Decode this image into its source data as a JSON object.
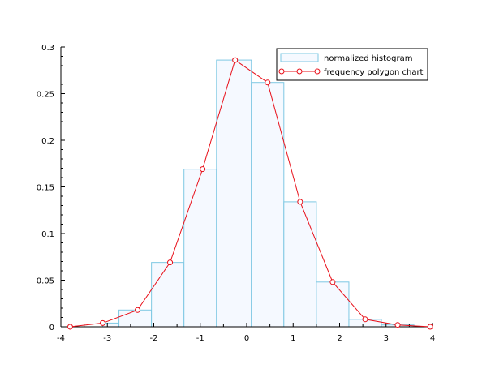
{
  "chart_data": {
    "type": "bar",
    "title": "",
    "xlabel": "",
    "ylabel": "",
    "xlim": [
      -4,
      4
    ],
    "ylim": [
      0,
      0.3
    ],
    "x_ticks": [
      "-4",
      "-3",
      "-2",
      "-1",
      "0",
      "1",
      "2",
      "3",
      "4"
    ],
    "y_ticks": [
      "0",
      "0.05",
      "0.1",
      "0.15",
      "0.2",
      "0.25",
      "0.3"
    ],
    "grid": false,
    "legend_position": "top-right",
    "series": [
      {
        "name": "normalized histogram",
        "type": "bar",
        "color": "#7ec8e3",
        "fill": "#f5f9ff",
        "bins": [
          {
            "x0": -3.8,
            "x1": -3.1,
            "value": 0.0
          },
          {
            "x0": -3.1,
            "x1": -2.75,
            "value": 0.004
          },
          {
            "x0": -2.75,
            "x1": -2.05,
            "value": 0.018
          },
          {
            "x0": -2.05,
            "x1": -1.35,
            "value": 0.069
          },
          {
            "x0": -1.35,
            "x1": -0.65,
            "value": 0.169
          },
          {
            "x0": -0.65,
            "x1": 0.1,
            "value": 0.286
          },
          {
            "x0": 0.1,
            "x1": 0.8,
            "value": 0.262
          },
          {
            "x0": 0.8,
            "x1": 1.5,
            "value": 0.134
          },
          {
            "x0": 1.5,
            "x1": 2.2,
            "value": 0.048
          },
          {
            "x0": 2.2,
            "x1": 2.9,
            "value": 0.008
          },
          {
            "x0": 2.9,
            "x1": 3.6,
            "value": 0.002
          }
        ]
      },
      {
        "name": "frequency polygon chart",
        "type": "line",
        "color": "#e8101a",
        "marker": "circle",
        "x": [
          -3.8,
          -3.1,
          -2.35,
          -1.65,
          -0.95,
          -0.25,
          0.45,
          1.15,
          1.85,
          2.55,
          3.25,
          3.95
        ],
        "y": [
          0.0,
          0.004,
          0.018,
          0.069,
          0.169,
          0.286,
          0.262,
          0.134,
          0.048,
          0.008,
          0.002,
          0.0
        ]
      }
    ]
  }
}
